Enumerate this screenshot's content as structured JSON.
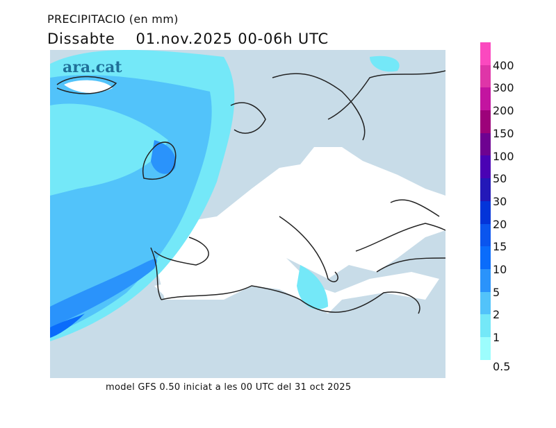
{
  "header": {
    "title": "PRECIPITACIO (en mm)",
    "subtitle": "Dissabte    01.nov.2025 00-06h UTC"
  },
  "map": {
    "logo": "ara.cat",
    "land_color": "#c8dce8",
    "sea_color": "#ffffff",
    "coast_color": "#222222"
  },
  "footer": "model GFS 0.50 iniciat a les 00 UTC del 31 oct 2025",
  "colorbar": {
    "levels": [
      "0.5",
      "1",
      "2",
      "5",
      "10",
      "15",
      "20",
      "30",
      "50",
      "100",
      "150",
      "200",
      "300",
      "400"
    ],
    "colors": [
      "#9cfdfd",
      "#74e8f8",
      "#52c3fa",
      "#2a93fb",
      "#0a6cfb",
      "#0a55ee",
      "#0334d9",
      "#2318b8",
      "#4a02b4",
      "#6e0291",
      "#9d027a",
      "#c314a0",
      "#df35a8",
      "#fb49bf"
    ]
  }
}
